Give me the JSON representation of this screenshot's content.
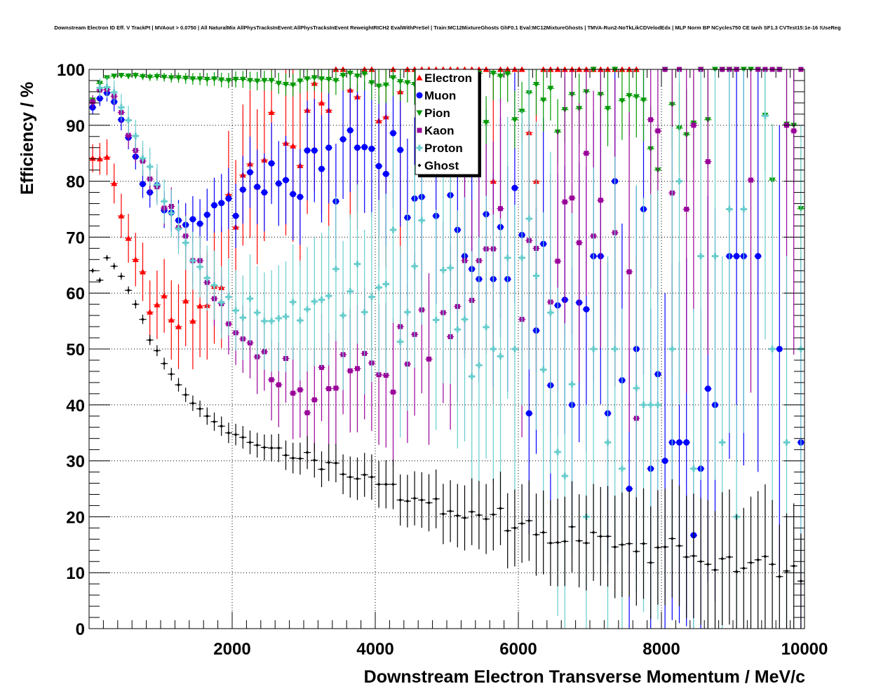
{
  "chart_data": {
    "type": "scatter",
    "title": "Downstream Electron ID Eff. V TrackPt | MVAout > 0.0750 | All NaturalMix AllPhysTracksInEvent:AllPhysTracksInEvent ReweightRICH2 EvalWithPreSel | Train:MC12MixtureGhosts GhF0.1 Eval:MC12MixtureGhosts | TMVA-Run2-NoTkLikCDVelodEdx | MLP Norm BP NCycles750 CE tanh SF1.3 CVTest15:1e-16 !UseReg",
    "xlabel": "Downstream Electron Transverse Momentum / MeV/c",
    "ylabel": "Efficiency / %",
    "xlim": [
      0,
      10000
    ],
    "ylim": [
      0,
      100
    ],
    "xticks": [
      "2000",
      "4000",
      "6000",
      "8000",
      "10000"
    ],
    "yticks": [
      "0",
      "10",
      "20",
      "30",
      "40",
      "50",
      "60",
      "70",
      "80",
      "90",
      "100"
    ],
    "grid": true,
    "legend_position": "top-center",
    "bin_width": 100,
    "x_first_bin_center": 50,
    "series": [
      {
        "name": "Electron",
        "color": "#ff0000",
        "marker": "triangle-up",
        "values": [
          84.1,
          84,
          84.3,
          79.6,
          73.8,
          69.8,
          66,
          63.8,
          56.6,
          57.9,
          59.5,
          55.2,
          54,
          58.6,
          55,
          57.7,
          57.8,
          61.2,
          61,
          77.6,
          71.8,
          81.1,
          83.1,
          79,
          83.8,
          92.3,
          null,
          86.8,
          86.3,
          82.8,
          92.7,
          97.5,
          94,
          92.7,
          100,
          100,
          96.3,
          95.1,
          100,
          100,
          90.8,
          91.5,
          100,
          96,
          100,
          100,
          100,
          100,
          100,
          100,
          100,
          100,
          100,
          100,
          100,
          100,
          80,
          100,
          100,
          100,
          100,
          88.7,
          80,
          100,
          100,
          100,
          100,
          100,
          100,
          100,
          100,
          100,
          100,
          100,
          100,
          100,
          100,
          null,
          null,
          null,
          null,
          null,
          null,
          null,
          null,
          null,
          null,
          null,
          null,
          null,
          null,
          null,
          null,
          null,
          null,
          null,
          null,
          null,
          null,
          null
        ]
      },
      {
        "name": "Muon",
        "color": "#0000ff",
        "marker": "circle",
        "values": [
          93.2,
          94.8,
          95.8,
          94.2,
          91,
          87.8,
          84.4,
          79.5,
          78,
          79.3,
          74.8,
          74.4,
          73,
          72.2,
          73.2,
          72.4,
          74,
          75.7,
          76.1,
          76.9,
          73.8,
          78.5,
          81.6,
          79,
          78,
          83.2,
          79.6,
          80.2,
          77.7,
          77.2,
          85.5,
          85.5,
          82.2,
          86,
          76.4,
          87.5,
          89.1,
          86,
          86.1,
          85.8,
          82.7,
          81.3,
          88.6,
          85.6,
          73.5,
          76.9,
          77.2,
          null,
          73.8,
          null,
          77.5,
          71.3,
          66.6,
          64.3,
          62.5,
          74.1,
          62.5,
          71.8,
          62.5,
          78.8,
          70.4,
          38.5,
          53.3,
          68.8,
          43.5,
          57.8,
          58.8,
          40,
          58.3,
          57.1,
          66.6,
          66.6,
          38.5,
          80,
          44.4,
          25,
          50,
          75,
          28.6,
          45.5,
          30,
          33.3,
          33.3,
          33.3,
          16.7,
          28.6,
          42.9,
          40,
          null,
          66.6,
          66.6,
          66.6,
          null,
          66.6,
          null,
          null,
          50,
          null,
          null,
          33.3
        ]
      },
      {
        "name": "Pion",
        "color": "#009900",
        "marker": "triangle-down",
        "values": [
          94.5,
          97.5,
          98.5,
          98.8,
          98.9,
          98.8,
          98.9,
          98.7,
          98.6,
          98.7,
          98.6,
          98.5,
          98.5,
          98.4,
          98.3,
          98.3,
          98.2,
          98.3,
          98.1,
          98,
          98.2,
          98.2,
          98,
          97.9,
          98,
          98,
          97.5,
          97.3,
          97.2,
          97.9,
          98.3,
          98.5,
          98.3,
          98.2,
          98,
          98.9,
          99.3,
          98.8,
          99.2,
          97.6,
          97,
          97.2,
          98.5,
          97.8,
          97.6,
          97.3,
          98.6,
          98.8,
          98,
          98.5,
          99,
          98.6,
          98.6,
          98.9,
          99.3,
          90.5,
          99.3,
          98.8,
          99.2,
          91,
          92.5,
          95.8,
          97.3,
          94.5,
          96.6,
          88.8,
          92.8,
          95.5,
          93,
          96,
          100,
          95.5,
          93,
          100,
          94.4,
          95.3,
          95.1,
          94.5,
          85.8,
          82,
          100,
          93.7,
          89.5,
          88.3,
          90.4,
          100,
          91,
          100,
          100,
          100,
          100,
          100,
          100,
          100,
          91.8,
          80.2,
          100,
          90.2,
          90,
          75.1
        ]
      },
      {
        "name": "Kaon",
        "color": "#990099",
        "marker": "square",
        "values": [
          94.2,
          96.3,
          96.4,
          95.2,
          92.3,
          88.2,
          85.5,
          83.6,
          80.4,
          79,
          75.2,
          75.5,
          71.7,
          70.2,
          65.8,
          65.8,
          61.9,
          59,
          58.1,
          54.5,
          52.9,
          51.8,
          51.1,
          48.6,
          49.5,
          44.5,
          43.6,
          48.3,
          42.1,
          42.7,
          38.6,
          40.9,
          46.7,
          42.9,
          43,
          49,
          46.1,
          46.5,
          49.2,
          47.5,
          45.4,
          45.3,
          42.3,
          54,
          47.3,
          52.6,
          57,
          48.2,
          null,
          56.5,
          52.2,
          57.6,
          65.8,
          58.7,
          65.8,
          67.9,
          67.9,
          75.1,
          null,
          null,
          55.3,
          69.4,
          68,
          null,
          58.4,
          65.7,
          76.3,
          77,
          69,
          85,
          70.2,
          76.6,
          null,
          70.8,
          null,
          63.8,
          37.6,
          null,
          91,
          89,
          100,
          77.9,
          100,
          75,
          90,
          100,
          83.5,
          null,
          100,
          100,
          100,
          null,
          80.2,
          100,
          100,
          100,
          100,
          90,
          89,
          100
        ]
      },
      {
        "name": "Proton",
        "color": "#66cccc",
        "marker": "cross",
        "values": [
          null,
          96.7,
          96.8,
          95.9,
          93.2,
          90.9,
          88.1,
          84.1,
          82.6,
          79.4,
          76.4,
          74.3,
          71.5,
          69,
          65.8,
          64.7,
          62.7,
          61.4,
          58.3,
          59.3,
          56.9,
          55.6,
          59,
          56.5,
          55,
          55,
          55.5,
          55.8,
          58.4,
          55.1,
          57.1,
          58.5,
          58.8,
          59.5,
          64.3,
          56,
          60.3,
          65.2,
          56.6,
          59.3,
          61,
          61.6,
          71.3,
          51.3,
          56.6,
          64.8,
          73,
          null,
          55.2,
          64.1,
          64.5,
          53.5,
          55.3,
          45.1,
          47.1,
          53.9,
          50,
          48.7,
          66.3,
          50,
          66.3,
          73.3,
          63.1,
          46.3,
          56.5,
          31.6,
          27.3,
          43.7,
          null,
          20,
          50,
          null,
          33.3,
          50,
          28.6,
          null,
          43,
          40,
          40,
          40,
          null,
          50,
          80,
          null,
          28.6,
          66.6,
          null,
          66.6,
          33.3,
          75,
          20,
          75,
          null,
          null,
          91.7,
          50,
          null,
          33.3,
          null,
          50
        ]
      },
      {
        "name": "Ghost",
        "color": "#000000",
        "marker": "diamond",
        "values": [
          64,
          62.3,
          66.3,
          64.8,
          63,
          60.5,
          58,
          55.3,
          51.6,
          49.7,
          47.4,
          45.5,
          43.6,
          41.8,
          40.3,
          39.3,
          38,
          37,
          36.2,
          35,
          34.7,
          34.2,
          33.3,
          32.8,
          32.4,
          32.3,
          32.3,
          31,
          30.5,
          30.4,
          31.5,
          30.1,
          28.5,
          29.7,
          29.6,
          27.6,
          27.1,
          26.8,
          27.5,
          27.1,
          25.8,
          25.8,
          25.8,
          23,
          22.8,
          23.3,
          23,
          22.5,
          23.2,
          20.5,
          21,
          20.2,
          19.8,
          20.9,
          20.3,
          19.6,
          20.4,
          21.5,
          17.5,
          18,
          18.8,
          19.3,
          16.8,
          17.2,
          15.3,
          15.4,
          15.6,
          18.2,
          15.7,
          15.3,
          17.2,
          16.5,
          16.5,
          14.6,
          15,
          15.2,
          13.8,
          15.2,
          11.8,
          14.5,
          14.6,
          16.1,
          14.8,
          12.8,
          13,
          12,
          11.5,
          10.5,
          12.5,
          12.8,
          10.2,
          10.8,
          11.8,
          12.3,
          12.9,
          11.5,
          9.3,
          10.3,
          11.2,
          8.5
        ]
      }
    ]
  }
}
